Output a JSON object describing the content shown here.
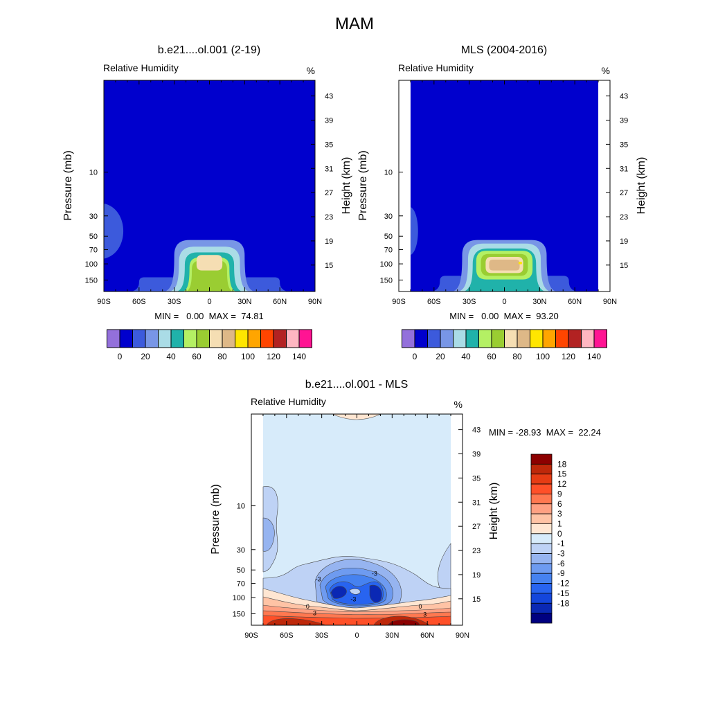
{
  "figure": {
    "title": "MAM"
  },
  "chart_data": [
    {
      "type": "heatmap",
      "title": "b.e21....ol.001 (2-19)",
      "left_label": "Relative Humidity",
      "right_label": "%",
      "xlabel": "",
      "ylabel": "Pressure (mb)",
      "ylabel_right": "Height (km)",
      "xlim": [
        -90,
        90
      ],
      "x_ticks": [
        -90,
        -60,
        -30,
        0,
        30,
        60,
        90
      ],
      "x_tick_labels": [
        "90S",
        "60S",
        "30S",
        "0",
        "30N",
        "60N",
        "90N"
      ],
      "y_ticks": [
        10,
        30,
        50,
        70,
        100,
        150
      ],
      "y_tick_labels": [
        "10",
        "30",
        "50",
        "70",
        "100",
        "150"
      ],
      "height_ticks": [
        43,
        39,
        35,
        31,
        27,
        23,
        19,
        15
      ],
      "height_tick_labels": [
        "43",
        "39",
        "35",
        "31",
        "27",
        "23",
        "19",
        "15"
      ],
      "stats_text": "MIN =   0.00  MAX =  74.81",
      "min": 0.0,
      "max": 74.81,
      "data_lat_range": [
        -90,
        90
      ],
      "features": [
        {
          "level": 10,
          "shape": "polar-blob",
          "lat": [
            -90,
            -77
          ],
          "p": [
            22,
            88
          ]
        },
        {
          "level": 10,
          "shape": "surface",
          "lat": [
            -60,
            60
          ],
          "p": [
            140,
            200
          ]
        },
        {
          "level": 20,
          "shape": "plume",
          "lat": [
            -30,
            30
          ],
          "p": [
            55,
            200
          ]
        },
        {
          "level": 30,
          "shape": "plume",
          "lat": [
            -26,
            26
          ],
          "p": [
            65,
            200
          ]
        },
        {
          "level": 40,
          "shape": "plume",
          "lat": [
            -21,
            21
          ],
          "p": [
            75,
            200
          ]
        },
        {
          "level": 50,
          "shape": "plume",
          "lat": [
            -17,
            17
          ],
          "p": [
            85,
            200
          ]
        },
        {
          "level": 60,
          "shape": "plume",
          "lat": [
            -15,
            15
          ],
          "p": [
            92,
            200
          ]
        },
        {
          "level": 70,
          "shape": "blob",
          "lat": [
            -11,
            11
          ],
          "p": [
            80,
            118
          ]
        }
      ]
    },
    {
      "type": "heatmap",
      "title": "MLS (2004-2016)",
      "left_label": "Relative Humidity",
      "right_label": "%",
      "xlabel": "",
      "ylabel": "Pressure (mb)",
      "ylabel_right": "Height (km)",
      "xlim": [
        -90,
        90
      ],
      "x_ticks": [
        -90,
        -60,
        -30,
        0,
        30,
        60,
        90
      ],
      "x_tick_labels": [
        "90S",
        "60S",
        "30S",
        "0",
        "30N",
        "60N",
        "90N"
      ],
      "y_ticks": [
        10,
        30,
        50,
        70,
        100,
        150
      ],
      "y_tick_labels": [
        "10",
        "30",
        "50",
        "70",
        "100",
        "150"
      ],
      "height_ticks": [
        43,
        39,
        35,
        31,
        27,
        23,
        19,
        15
      ],
      "height_tick_labels": [
        "43",
        "39",
        "35",
        "31",
        "27",
        "23",
        "19",
        "15"
      ],
      "stats_text": "MIN =   0.00  MAX =  93.20",
      "min": 0.0,
      "max": 93.2,
      "data_lat_range": [
        -80,
        80
      ],
      "features": [
        {
          "level": 10,
          "shape": "polar-blob",
          "lat": [
            -80,
            -75
          ],
          "p": [
            24,
            80
          ]
        },
        {
          "level": 10,
          "shape": "surface",
          "lat": [
            -55,
            55
          ],
          "p": [
            135,
            200
          ]
        },
        {
          "level": 20,
          "shape": "plume",
          "lat": [
            -36,
            36
          ],
          "p": [
            55,
            200
          ]
        },
        {
          "level": 30,
          "shape": "plume",
          "lat": [
            -31,
            31
          ],
          "p": [
            60,
            200
          ]
        },
        {
          "level": 40,
          "shape": "plume",
          "lat": [
            -27,
            27
          ],
          "p": [
            68,
            200
          ]
        },
        {
          "level": 50,
          "shape": "blob",
          "lat": [
            -24,
            24
          ],
          "p": [
            72,
            148
          ]
        },
        {
          "level": 60,
          "shape": "blob",
          "lat": [
            -20,
            20
          ],
          "p": [
            78,
            135
          ]
        },
        {
          "level": 70,
          "shape": "blob",
          "lat": [
            -16,
            16
          ],
          "p": [
            84,
            126
          ]
        },
        {
          "level": 80,
          "shape": "blob",
          "lat": [
            -13,
            13
          ],
          "p": [
            90,
            118
          ]
        },
        {
          "level": 90,
          "shape": "dot",
          "lat": [
            12,
            15
          ],
          "p": [
            95,
            101
          ]
        }
      ]
    },
    {
      "type": "heatmap",
      "title": "b.e21....ol.001 - MLS",
      "left_label": "Relative Humidity",
      "right_label": "%",
      "xlabel": "",
      "ylabel": "Pressure (mb)",
      "ylabel_right": "Height (km)",
      "xlim": [
        -90,
        90
      ],
      "x_ticks": [
        -90,
        -60,
        -30,
        0,
        30,
        60,
        90
      ],
      "x_tick_labels": [
        "90S",
        "60S",
        "30S",
        "0",
        "30N",
        "60N",
        "90N"
      ],
      "y_ticks": [
        10,
        30,
        50,
        70,
        100,
        150
      ],
      "y_tick_labels": [
        "10",
        "30",
        "50",
        "70",
        "100",
        "150"
      ],
      "height_ticks": [
        43,
        39,
        35,
        31,
        27,
        23,
        19,
        15
      ],
      "height_tick_labels": [
        "43",
        "39",
        "35",
        "31",
        "27",
        "23",
        "19",
        "15"
      ],
      "stats_text": "MIN = -28.93  MAX =  22.24",
      "min": -28.93,
      "max": 22.24,
      "data_lat_range": [
        -80,
        80
      ],
      "contour_labels": [
        {
          "text": "-3",
          "lat": -33,
          "p": 63
        },
        {
          "text": "-3",
          "lat": 15,
          "p": 55
        },
        {
          "text": "-3",
          "lat": -3,
          "p": 104
        },
        {
          "text": "0",
          "lat": -42,
          "p": 125
        },
        {
          "text": "0",
          "lat": 54,
          "p": 125
        },
        {
          "text": "3",
          "lat": -36,
          "p": 147
        },
        {
          "text": "3",
          "lat": 58,
          "p": 153
        }
      ]
    }
  ],
  "colorbar_main": {
    "colors": [
      "#9370DB",
      "#0000CD",
      "#3C5ADC",
      "#7896E6",
      "#AADCE6",
      "#20B2AA",
      "#B4F064",
      "#9ACD32",
      "#F5DEB3",
      "#DEB887",
      "#FFE600",
      "#FFA500",
      "#FF4500",
      "#B22222",
      "#FFB6C1",
      "#FF1493"
    ],
    "labels": [
      "0",
      "20",
      "40",
      "60",
      "80",
      "100",
      "120",
      "140"
    ],
    "label_boundaries": [
      1,
      3,
      5,
      7,
      9,
      11,
      13,
      15
    ]
  },
  "colorbar_diff": {
    "colors": [
      "#000080",
      "#0A28B4",
      "#1446DC",
      "#2864F0",
      "#4682F0",
      "#6E9BF0",
      "#96B4F0",
      "#BED2F5",
      "#D7EBFA",
      "#FFE6D2",
      "#FFC3A5",
      "#FFA082",
      "#FF7850",
      "#FF5028",
      "#E63C14",
      "#BE280A",
      "#8C0000"
    ],
    "labels": [
      "-18",
      "-15",
      "-12",
      "-9",
      "-6",
      "-3",
      "-1",
      "0",
      "1",
      "3",
      "6",
      "9",
      "12",
      "15",
      "18"
    ]
  }
}
